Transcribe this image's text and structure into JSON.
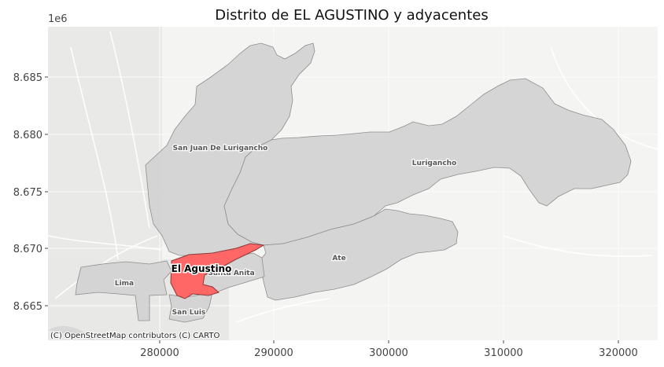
{
  "title": "Distrito de EL AGUSTINO y adyacentes",
  "offset_label": "1e6",
  "x_ticks": [
    "280000",
    "290000",
    "300000",
    "310000",
    "320000"
  ],
  "y_ticks": [
    "8.685",
    "8.680",
    "8.675",
    "8.670",
    "8.665"
  ],
  "districts": {
    "sjl": "San Juan De Lurigancho",
    "lurigancho": "Lurigancho",
    "ate": "Ate",
    "lima": "Lima",
    "santa_anita": "Santa Anita",
    "san_luis": "San Luis",
    "el_agustino": "El Agustino"
  },
  "attribution": "(C) OpenStreetMap contributors (C) CARTO",
  "colors": {
    "highlight": "#ff6666",
    "neighbor": "#d3d3d3",
    "basemap": "#f4f4f2"
  }
}
